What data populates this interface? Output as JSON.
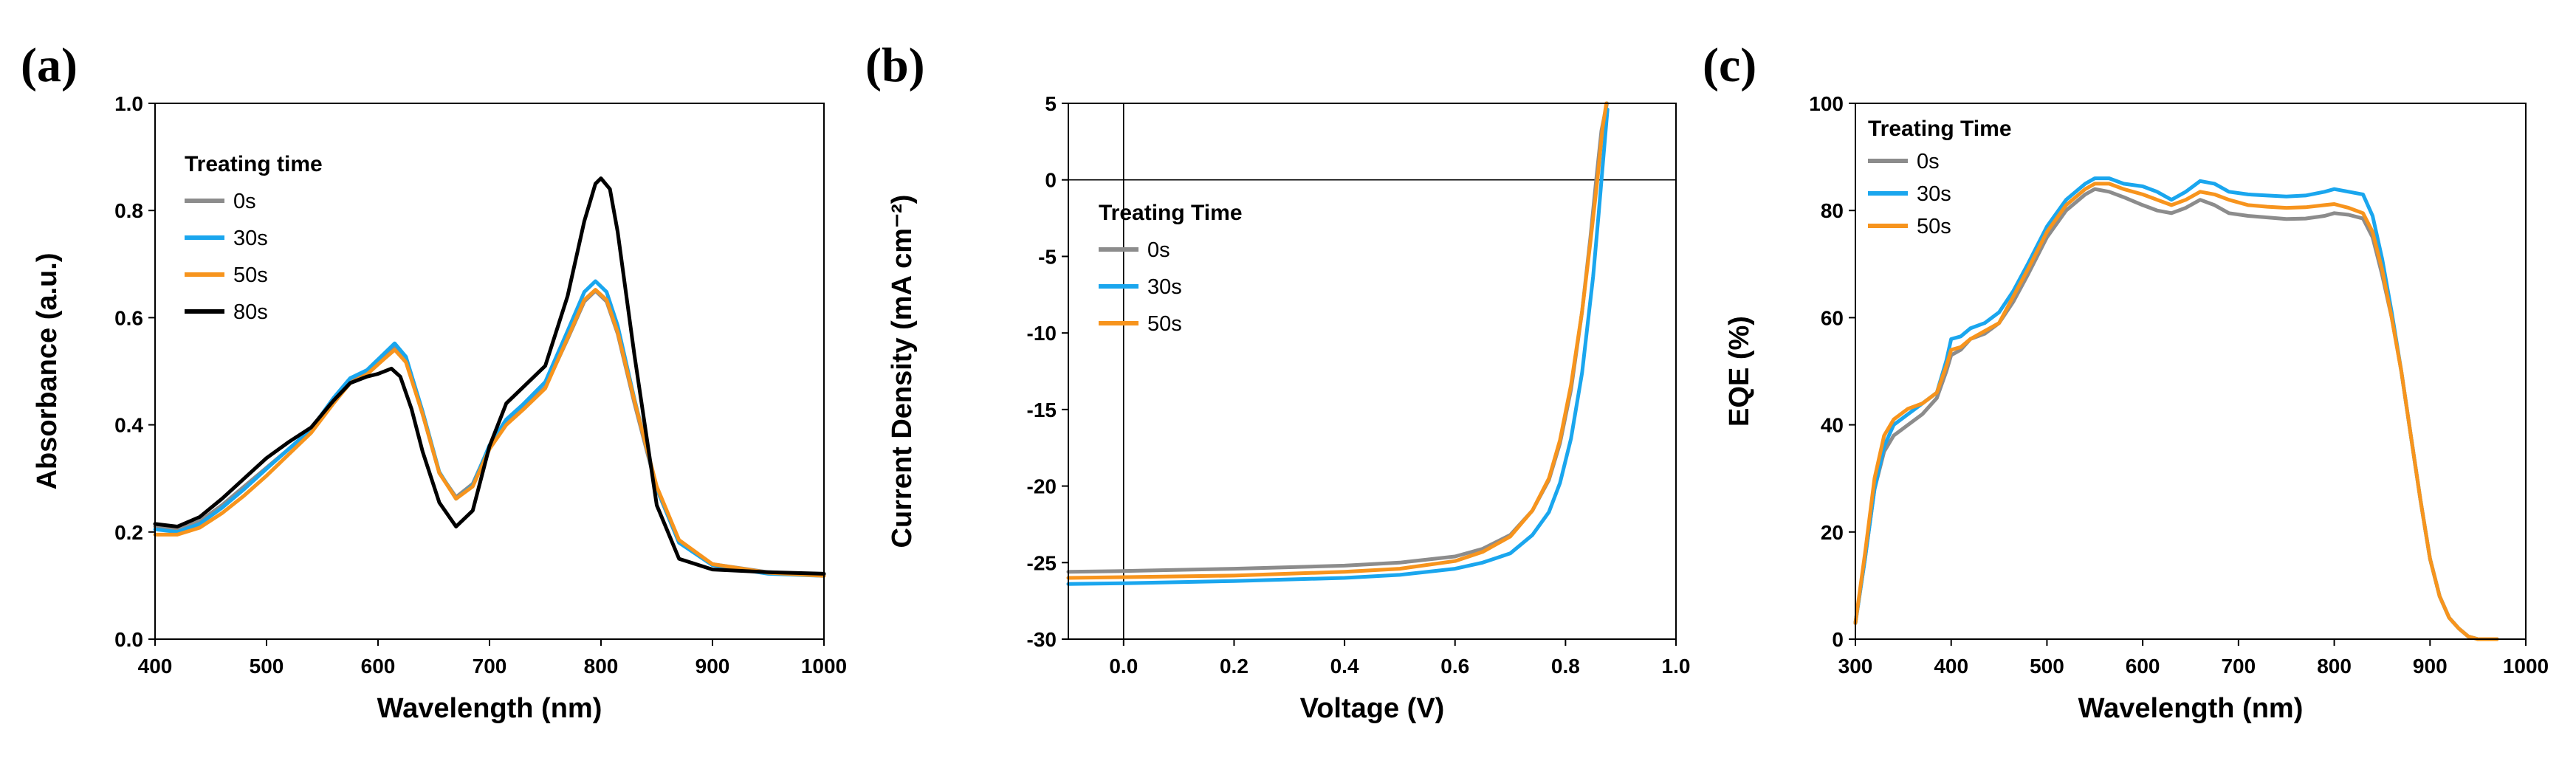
{
  "colors": {
    "gray": "#8c8c8c",
    "blue": "#1aa6ee",
    "orange": "#f7941d",
    "black": "#000000"
  },
  "chart_data": [
    {
      "type": "line",
      "panel_label": "(a)",
      "xlabel": "Wavelength (nm)",
      "ylabel": "Absorbance (a.u.)",
      "xlim": [
        400,
        1000
      ],
      "ylim": [
        0.0,
        1.0
      ],
      "xticks": [
        "400",
        "500",
        "600",
        "700",
        "800",
        "900",
        "1000"
      ],
      "yticks": [
        "0.0",
        "0.2",
        "0.4",
        "0.6",
        "0.8",
        "1.0"
      ],
      "legend": {
        "title": "Treating time",
        "position": "top-left"
      },
      "zero_lines": [],
      "series": [
        {
          "name": "0s",
          "color": "gray",
          "x": [
            400,
            420,
            440,
            460,
            480,
            500,
            520,
            540,
            560,
            575,
            590,
            605,
            615,
            625,
            640,
            655,
            670,
            685,
            700,
            715,
            730,
            750,
            770,
            785,
            795,
            805,
            815,
            830,
            850,
            870,
            900,
            950,
            1000
          ],
          "y": [
            0.21,
            0.205,
            0.22,
            0.25,
            0.285,
            0.32,
            0.355,
            0.39,
            0.445,
            0.48,
            0.495,
            0.525,
            0.545,
            0.52,
            0.42,
            0.31,
            0.265,
            0.29,
            0.36,
            0.405,
            0.43,
            0.47,
            0.56,
            0.63,
            0.65,
            0.63,
            0.57,
            0.44,
            0.28,
            0.18,
            0.14,
            0.125,
            0.12
          ]
        },
        {
          "name": "30s",
          "color": "blue",
          "x": [
            400,
            420,
            440,
            460,
            480,
            500,
            520,
            540,
            560,
            575,
            590,
            605,
            615,
            625,
            640,
            655,
            670,
            685,
            700,
            715,
            730,
            750,
            770,
            785,
            795,
            805,
            815,
            830,
            850,
            870,
            900,
            950,
            1000
          ],
          "y": [
            0.205,
            0.2,
            0.215,
            0.245,
            0.28,
            0.318,
            0.355,
            0.392,
            0.45,
            0.487,
            0.502,
            0.532,
            0.552,
            0.527,
            0.425,
            0.312,
            0.262,
            0.287,
            0.362,
            0.41,
            0.438,
            0.48,
            0.575,
            0.648,
            0.668,
            0.648,
            0.585,
            0.448,
            0.282,
            0.18,
            0.138,
            0.122,
            0.118
          ]
        },
        {
          "name": "50s",
          "color": "orange",
          "x": [
            400,
            420,
            440,
            460,
            480,
            500,
            520,
            540,
            560,
            575,
            590,
            605,
            615,
            625,
            640,
            655,
            670,
            685,
            700,
            715,
            730,
            750,
            770,
            785,
            795,
            805,
            815,
            830,
            850,
            870,
            900,
            950,
            1000
          ],
          "y": [
            0.195,
            0.195,
            0.208,
            0.235,
            0.268,
            0.305,
            0.345,
            0.385,
            0.44,
            0.478,
            0.494,
            0.522,
            0.54,
            0.517,
            0.42,
            0.31,
            0.262,
            0.285,
            0.355,
            0.4,
            0.428,
            0.468,
            0.562,
            0.633,
            0.652,
            0.633,
            0.573,
            0.445,
            0.285,
            0.185,
            0.14,
            0.124,
            0.118
          ]
        },
        {
          "name": "80s",
          "color": "black",
          "x": [
            400,
            420,
            440,
            460,
            480,
            500,
            520,
            540,
            560,
            575,
            590,
            600,
            612,
            620,
            630,
            640,
            655,
            670,
            685,
            700,
            715,
            730,
            750,
            770,
            785,
            795,
            800,
            808,
            815,
            830,
            850,
            870,
            900,
            950,
            1000
          ],
          "y": [
            0.215,
            0.21,
            0.228,
            0.262,
            0.3,
            0.338,
            0.368,
            0.395,
            0.445,
            0.478,
            0.49,
            0.495,
            0.505,
            0.49,
            0.43,
            0.35,
            0.255,
            0.21,
            0.24,
            0.36,
            0.44,
            0.47,
            0.51,
            0.64,
            0.78,
            0.85,
            0.86,
            0.84,
            0.76,
            0.53,
            0.25,
            0.15,
            0.13,
            0.125,
            0.122
          ]
        }
      ]
    },
    {
      "type": "line",
      "panel_label": "(b)",
      "xlabel": "Voltage (V)",
      "ylabel": "Current Density (mA cm⁻²)",
      "xlim": [
        -0.1,
        1.0
      ],
      "ylim": [
        -30,
        5
      ],
      "xticks": [
        "0.0",
        "0.2",
        "0.4",
        "0.6",
        "0.8",
        "1.0"
      ],
      "xtick_values": [
        0.0,
        0.2,
        0.4,
        0.6,
        0.8,
        1.0
      ],
      "yticks": [
        "5",
        "0",
        "-5",
        "-10",
        "-15",
        "-20",
        "-25",
        "-30"
      ],
      "ytick_values": [
        5,
        0,
        -5,
        -10,
        -15,
        -20,
        -25,
        -30
      ],
      "legend": {
        "title": "Treating Time",
        "position": "center-left"
      },
      "zero_lines": [
        {
          "axis": "x",
          "value": 0
        },
        {
          "axis": "y",
          "value": 0
        }
      ],
      "series": [
        {
          "name": "0s",
          "color": "gray",
          "x": [
            -0.1,
            0.0,
            0.2,
            0.4,
            0.5,
            0.6,
            0.65,
            0.7,
            0.74,
            0.77,
            0.79,
            0.81,
            0.83,
            0.845,
            0.855,
            0.865,
            0.875
          ],
          "y": [
            -25.6,
            -25.55,
            -25.4,
            -25.2,
            -25.0,
            -24.6,
            -24.1,
            -23.2,
            -21.6,
            -19.6,
            -17.2,
            -13.7,
            -8.6,
            -3.8,
            -0.2,
            3.2,
            5.0
          ]
        },
        {
          "name": "30s",
          "color": "blue",
          "x": [
            -0.1,
            0.0,
            0.2,
            0.4,
            0.5,
            0.6,
            0.65,
            0.7,
            0.74,
            0.77,
            0.79,
            0.81,
            0.83,
            0.85,
            0.86,
            0.868,
            0.876
          ],
          "y": [
            -26.4,
            -26.35,
            -26.2,
            -26.0,
            -25.8,
            -25.4,
            -25.0,
            -24.4,
            -23.2,
            -21.7,
            -19.8,
            -16.9,
            -12.6,
            -6.3,
            -2.2,
            1.2,
            4.6
          ]
        },
        {
          "name": "50s",
          "color": "orange",
          "x": [
            -0.1,
            0.0,
            0.2,
            0.4,
            0.5,
            0.6,
            0.65,
            0.7,
            0.74,
            0.77,
            0.79,
            0.81,
            0.83,
            0.845,
            0.858,
            0.867,
            0.874
          ],
          "y": [
            -26.0,
            -25.95,
            -25.85,
            -25.6,
            -25.4,
            -24.9,
            -24.3,
            -23.3,
            -21.6,
            -19.5,
            -17.0,
            -13.4,
            -8.6,
            -4.1,
            0.1,
            3.4,
            5.0
          ]
        }
      ]
    },
    {
      "type": "line",
      "panel_label": "(c)",
      "xlabel": "Wavelength (nm)",
      "ylabel": "EQE (%)",
      "xlim": [
        300,
        1000
      ],
      "ylim": [
        0,
        100
      ],
      "xticks": [
        "300",
        "400",
        "500",
        "600",
        "700",
        "800",
        "900",
        "1000"
      ],
      "yticks": [
        "0",
        "20",
        "40",
        "60",
        "80",
        "100"
      ],
      "legend": {
        "title": "Treating Time",
        "position": "top-left"
      },
      "zero_lines": [],
      "series": [
        {
          "name": "0s",
          "color": "gray",
          "x": [
            300,
            310,
            320,
            330,
            340,
            355,
            370,
            385,
            395,
            400,
            410,
            420,
            435,
            450,
            465,
            480,
            500,
            520,
            540,
            550,
            565,
            580,
            600,
            615,
            630,
            645,
            660,
            675,
            690,
            710,
            730,
            750,
            770,
            790,
            800,
            815,
            830,
            840,
            850,
            860,
            870,
            880,
            890,
            900,
            910,
            920,
            930,
            940,
            950,
            960,
            970
          ],
          "y": [
            3,
            15,
            28,
            35,
            38,
            40,
            42,
            45,
            50,
            53,
            54,
            56,
            57,
            59,
            63,
            68,
            75,
            80,
            83,
            84,
            83.5,
            82.5,
            81,
            80,
            79.5,
            80.5,
            82,
            81,
            79.5,
            79,
            78.7,
            78.4,
            78.5,
            79,
            79.5,
            79.2,
            78.5,
            75,
            68,
            60,
            50,
            38,
            26,
            15,
            8,
            4,
            2,
            0.5,
            0,
            0,
            0
          ]
        },
        {
          "name": "30s",
          "color": "blue",
          "x": [
            300,
            310,
            320,
            330,
            340,
            355,
            370,
            385,
            395,
            400,
            410,
            420,
            435,
            450,
            465,
            480,
            500,
            520,
            540,
            550,
            565,
            580,
            600,
            615,
            630,
            645,
            660,
            675,
            690,
            710,
            730,
            750,
            770,
            790,
            800,
            815,
            830,
            840,
            850,
            860,
            870,
            880,
            890,
            900,
            910,
            920,
            930,
            940,
            950,
            960,
            970
          ],
          "y": [
            3,
            15,
            28,
            36,
            40,
            42,
            44,
            46,
            52,
            56,
            56.5,
            58,
            59,
            61,
            65,
            70,
            77,
            82,
            85,
            86,
            86,
            85,
            84.5,
            83.5,
            82,
            83.5,
            85.5,
            85,
            83.5,
            83,
            82.8,
            82.6,
            82.8,
            83.5,
            84,
            83.5,
            83,
            79,
            71,
            61,
            50,
            38,
            26,
            15,
            8,
            4,
            2,
            0.5,
            0,
            0,
            0
          ]
        },
        {
          "name": "50s",
          "color": "orange",
          "x": [
            300,
            310,
            320,
            330,
            340,
            355,
            370,
            385,
            395,
            400,
            410,
            420,
            435,
            450,
            465,
            480,
            500,
            520,
            540,
            550,
            565,
            580,
            600,
            615,
            630,
            645,
            660,
            675,
            690,
            710,
            730,
            750,
            770,
            790,
            800,
            815,
            830,
            840,
            850,
            860,
            870,
            880,
            890,
            900,
            910,
            920,
            930,
            940,
            950,
            960,
            970
          ],
          "y": [
            3,
            16,
            30,
            38,
            41,
            43,
            44,
            46,
            51,
            54,
            54.5,
            56,
            57.5,
            59,
            64,
            69,
            76,
            81,
            84,
            85,
            85,
            84,
            83,
            82,
            81,
            82,
            83.5,
            83,
            82,
            81,
            80.7,
            80.5,
            80.6,
            81,
            81.2,
            80.5,
            79.5,
            76,
            69,
            60,
            50,
            38,
            26,
            15,
            8,
            4,
            2,
            0.5,
            0,
            0,
            0
          ]
        }
      ]
    }
  ]
}
